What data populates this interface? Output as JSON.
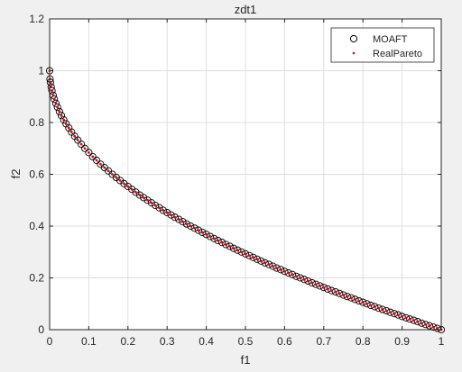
{
  "figure": {
    "background": "#f0f0f0"
  },
  "chart_data": {
    "type": "scatter",
    "title": "zdt1",
    "xlabel": "f1",
    "ylabel": "f2",
    "xlim": [
      0,
      1
    ],
    "ylim": [
      0,
      1.2
    ],
    "xticks": [
      "0",
      "0.1",
      "0.2",
      "0.3",
      "0.4",
      "0.5",
      "0.6",
      "0.7",
      "0.8",
      "0.9",
      "1"
    ],
    "yticks": [
      "0",
      "0.2",
      "0.4",
      "0.6",
      "0.8",
      "1",
      "1.2"
    ],
    "grid": true,
    "legend_position": "top-right",
    "series": [
      {
        "name": "MOAFT",
        "marker": "open-circle",
        "color": "#000000",
        "x": [
          0.0,
          0.001,
          0.002,
          0.004,
          0.006,
          0.009,
          0.012,
          0.016,
          0.02,
          0.025,
          0.03,
          0.036,
          0.042,
          0.049,
          0.056,
          0.064,
          0.072,
          0.081,
          0.09,
          0.1,
          0.11,
          0.12,
          0.13,
          0.14,
          0.15,
          0.16,
          0.17,
          0.18,
          0.19,
          0.2,
          0.21,
          0.22,
          0.23,
          0.24,
          0.25,
          0.26,
          0.27,
          0.28,
          0.29,
          0.3,
          0.31,
          0.32,
          0.33,
          0.34,
          0.35,
          0.36,
          0.37,
          0.38,
          0.39,
          0.4,
          0.41,
          0.42,
          0.43,
          0.44,
          0.45,
          0.46,
          0.47,
          0.48,
          0.49,
          0.5,
          0.51,
          0.52,
          0.53,
          0.54,
          0.55,
          0.56,
          0.57,
          0.58,
          0.59,
          0.6,
          0.61,
          0.62,
          0.63,
          0.64,
          0.65,
          0.66,
          0.67,
          0.68,
          0.69,
          0.7,
          0.71,
          0.72,
          0.73,
          0.74,
          0.75,
          0.76,
          0.77,
          0.78,
          0.79,
          0.8,
          0.81,
          0.82,
          0.83,
          0.84,
          0.85,
          0.86,
          0.87,
          0.88,
          0.89,
          0.9,
          0.91,
          0.92,
          0.93,
          0.94,
          0.95,
          0.96,
          0.97,
          0.98,
          0.99,
          1.0
        ],
        "y": [
          1.0,
          0.968,
          0.955,
          0.937,
          0.923,
          0.905,
          0.89,
          0.874,
          0.859,
          0.842,
          0.827,
          0.81,
          0.795,
          0.779,
          0.763,
          0.747,
          0.732,
          0.716,
          0.7,
          0.684,
          0.668,
          0.654,
          0.639,
          0.626,
          0.613,
          0.6,
          0.588,
          0.576,
          0.564,
          0.553,
          0.542,
          0.531,
          0.52,
          0.51,
          0.5,
          0.49,
          0.48,
          0.471,
          0.461,
          0.452,
          0.443,
          0.434,
          0.426,
          0.417,
          0.408,
          0.4,
          0.392,
          0.384,
          0.376,
          0.368,
          0.36,
          0.352,
          0.344,
          0.337,
          0.329,
          0.322,
          0.314,
          0.307,
          0.3,
          0.293,
          0.286,
          0.279,
          0.272,
          0.265,
          0.258,
          0.252,
          0.245,
          0.238,
          0.232,
          0.225,
          0.219,
          0.213,
          0.206,
          0.2,
          0.194,
          0.188,
          0.181,
          0.175,
          0.169,
          0.163,
          0.157,
          0.151,
          0.146,
          0.14,
          0.134,
          0.128,
          0.123,
          0.117,
          0.111,
          0.106,
          0.1,
          0.094,
          0.089,
          0.083,
          0.078,
          0.073,
          0.067,
          0.062,
          0.057,
          0.051,
          0.046,
          0.041,
          0.036,
          0.031,
          0.025,
          0.02,
          0.015,
          0.01,
          0.005,
          0.0
        ]
      },
      {
        "name": "RealPareto",
        "marker": "dot",
        "color": "#e8000b",
        "x": [
          0.0,
          0.001,
          0.002,
          0.004,
          0.006,
          0.009,
          0.012,
          0.016,
          0.02,
          0.025,
          0.03,
          0.036,
          0.042,
          0.049,
          0.056,
          0.064,
          0.072,
          0.081,
          0.09,
          0.1,
          0.11,
          0.12,
          0.13,
          0.14,
          0.15,
          0.16,
          0.17,
          0.18,
          0.19,
          0.2,
          0.21,
          0.22,
          0.23,
          0.24,
          0.25,
          0.26,
          0.27,
          0.28,
          0.29,
          0.3,
          0.31,
          0.32,
          0.33,
          0.34,
          0.35,
          0.36,
          0.37,
          0.38,
          0.39,
          0.4,
          0.41,
          0.42,
          0.43,
          0.44,
          0.45,
          0.46,
          0.47,
          0.48,
          0.49,
          0.5,
          0.51,
          0.52,
          0.53,
          0.54,
          0.55,
          0.56,
          0.57,
          0.58,
          0.59,
          0.6,
          0.61,
          0.62,
          0.63,
          0.64,
          0.65,
          0.66,
          0.67,
          0.68,
          0.69,
          0.7,
          0.71,
          0.72,
          0.73,
          0.74,
          0.75,
          0.76,
          0.77,
          0.78,
          0.79,
          0.8,
          0.81,
          0.82,
          0.83,
          0.84,
          0.85,
          0.86,
          0.87,
          0.88,
          0.89,
          0.9,
          0.91,
          0.92,
          0.93,
          0.94,
          0.95,
          0.96,
          0.97,
          0.98,
          0.99,
          1.0
        ],
        "y": [
          1.0,
          0.968,
          0.955,
          0.937,
          0.923,
          0.905,
          0.89,
          0.874,
          0.859,
          0.842,
          0.827,
          0.81,
          0.795,
          0.779,
          0.763,
          0.747,
          0.732,
          0.716,
          0.7,
          0.684,
          0.668,
          0.654,
          0.639,
          0.626,
          0.613,
          0.6,
          0.588,
          0.576,
          0.564,
          0.553,
          0.542,
          0.531,
          0.52,
          0.51,
          0.5,
          0.49,
          0.48,
          0.471,
          0.461,
          0.452,
          0.443,
          0.434,
          0.426,
          0.417,
          0.408,
          0.4,
          0.392,
          0.384,
          0.376,
          0.368,
          0.36,
          0.352,
          0.344,
          0.337,
          0.329,
          0.322,
          0.314,
          0.307,
          0.3,
          0.293,
          0.286,
          0.279,
          0.272,
          0.265,
          0.258,
          0.252,
          0.245,
          0.238,
          0.232,
          0.225,
          0.219,
          0.213,
          0.206,
          0.2,
          0.194,
          0.188,
          0.181,
          0.175,
          0.169,
          0.163,
          0.157,
          0.151,
          0.146,
          0.14,
          0.134,
          0.128,
          0.123,
          0.117,
          0.111,
          0.106,
          0.1,
          0.094,
          0.089,
          0.083,
          0.078,
          0.073,
          0.067,
          0.062,
          0.057,
          0.051,
          0.046,
          0.041,
          0.036,
          0.031,
          0.025,
          0.02,
          0.015,
          0.01,
          0.005,
          0.0
        ]
      }
    ]
  }
}
